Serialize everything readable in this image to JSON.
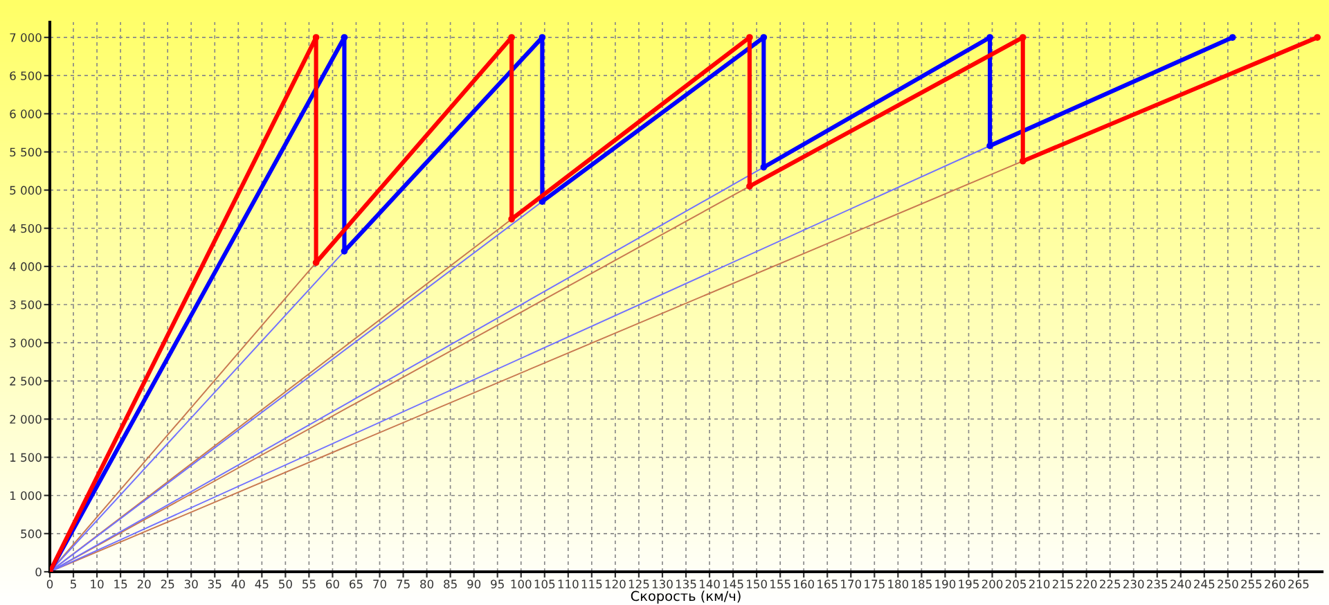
{
  "chart_data": {
    "type": "line",
    "xlabel": "Скорость (км/ч)",
    "xlim": [
      0,
      270
    ],
    "ylim": [
      0,
      7200
    ],
    "xticks": [
      0,
      5,
      10,
      15,
      20,
      25,
      30,
      35,
      40,
      45,
      50,
      55,
      60,
      65,
      70,
      75,
      80,
      85,
      90,
      95,
      100,
      105,
      110,
      115,
      120,
      125,
      130,
      135,
      140,
      145,
      150,
      155,
      160,
      165,
      170,
      175,
      180,
      185,
      190,
      195,
      200,
      205,
      210,
      215,
      220,
      225,
      230,
      235,
      240,
      245,
      250,
      255,
      260,
      265
    ],
    "yticks": [
      {
        "value": 0,
        "label": "0"
      },
      {
        "value": 500,
        "label": "500"
      },
      {
        "value": 1000,
        "label": "1 000"
      },
      {
        "value": 1500,
        "label": "1 500"
      },
      {
        "value": 2000,
        "label": "2 000"
      },
      {
        "value": 2500,
        "label": "2 500"
      },
      {
        "value": 3000,
        "label": "3 000"
      },
      {
        "value": 3500,
        "label": "3 500"
      },
      {
        "value": 4000,
        "label": "4 000"
      },
      {
        "value": 4500,
        "label": "4 500"
      },
      {
        "value": 5000,
        "label": "5 000"
      },
      {
        "value": 5500,
        "label": "5 500"
      },
      {
        "value": 6000,
        "label": "6 000"
      },
      {
        "value": 6500,
        "label": "6 500"
      },
      {
        "value": 7000,
        "label": "7 000"
      }
    ],
    "grid": true,
    "line_style": "solid",
    "series": [
      {
        "color": "#c87850",
        "marker": "none",
        "x": [
          0,
          56.5
        ],
        "values": [
          0,
          4050
        ]
      },
      {
        "color": "#c87850",
        "marker": "none",
        "x": [
          0,
          98
        ],
        "values": [
          0,
          4620
        ]
      },
      {
        "color": "#c87850",
        "marker": "none",
        "x": [
          0,
          148.5
        ],
        "values": [
          0,
          5050
        ]
      },
      {
        "color": "#c87850",
        "marker": "none",
        "x": [
          0,
          206.5
        ],
        "values": [
          0,
          5380
        ]
      },
      {
        "color": "#7070ff",
        "marker": "none",
        "x": [
          0,
          62.5
        ],
        "values": [
          0,
          4200
        ]
      },
      {
        "color": "#7070ff",
        "marker": "none",
        "x": [
          0,
          104.5
        ],
        "values": [
          0,
          4850
        ]
      },
      {
        "color": "#7070ff",
        "marker": "none",
        "x": [
          0,
          151.5
        ],
        "values": [
          0,
          5300
        ]
      },
      {
        "color": "#7070ff",
        "marker": "none",
        "x": [
          0,
          199.5
        ],
        "values": [
          0,
          5580
        ]
      },
      {
        "color": "#0000ff",
        "marker": "circle",
        "x": [
          0,
          62.5,
          62.5,
          104.5,
          104.5,
          151.5,
          151.5,
          199.5,
          199.5,
          251
        ],
        "values": [
          0,
          7000,
          4200,
          7000,
          4850,
          7000,
          5300,
          7000,
          5580,
          7000
        ]
      },
      {
        "color": "#ff0000",
        "marker": "circle",
        "x": [
          0,
          56.5,
          56.5,
          98,
          98,
          148.5,
          148.5,
          206.5,
          206.5,
          269
        ],
        "values": [
          0,
          7000,
          4050,
          7000,
          4620,
          7000,
          5050,
          7000,
          5380,
          7000
        ]
      }
    ]
  }
}
